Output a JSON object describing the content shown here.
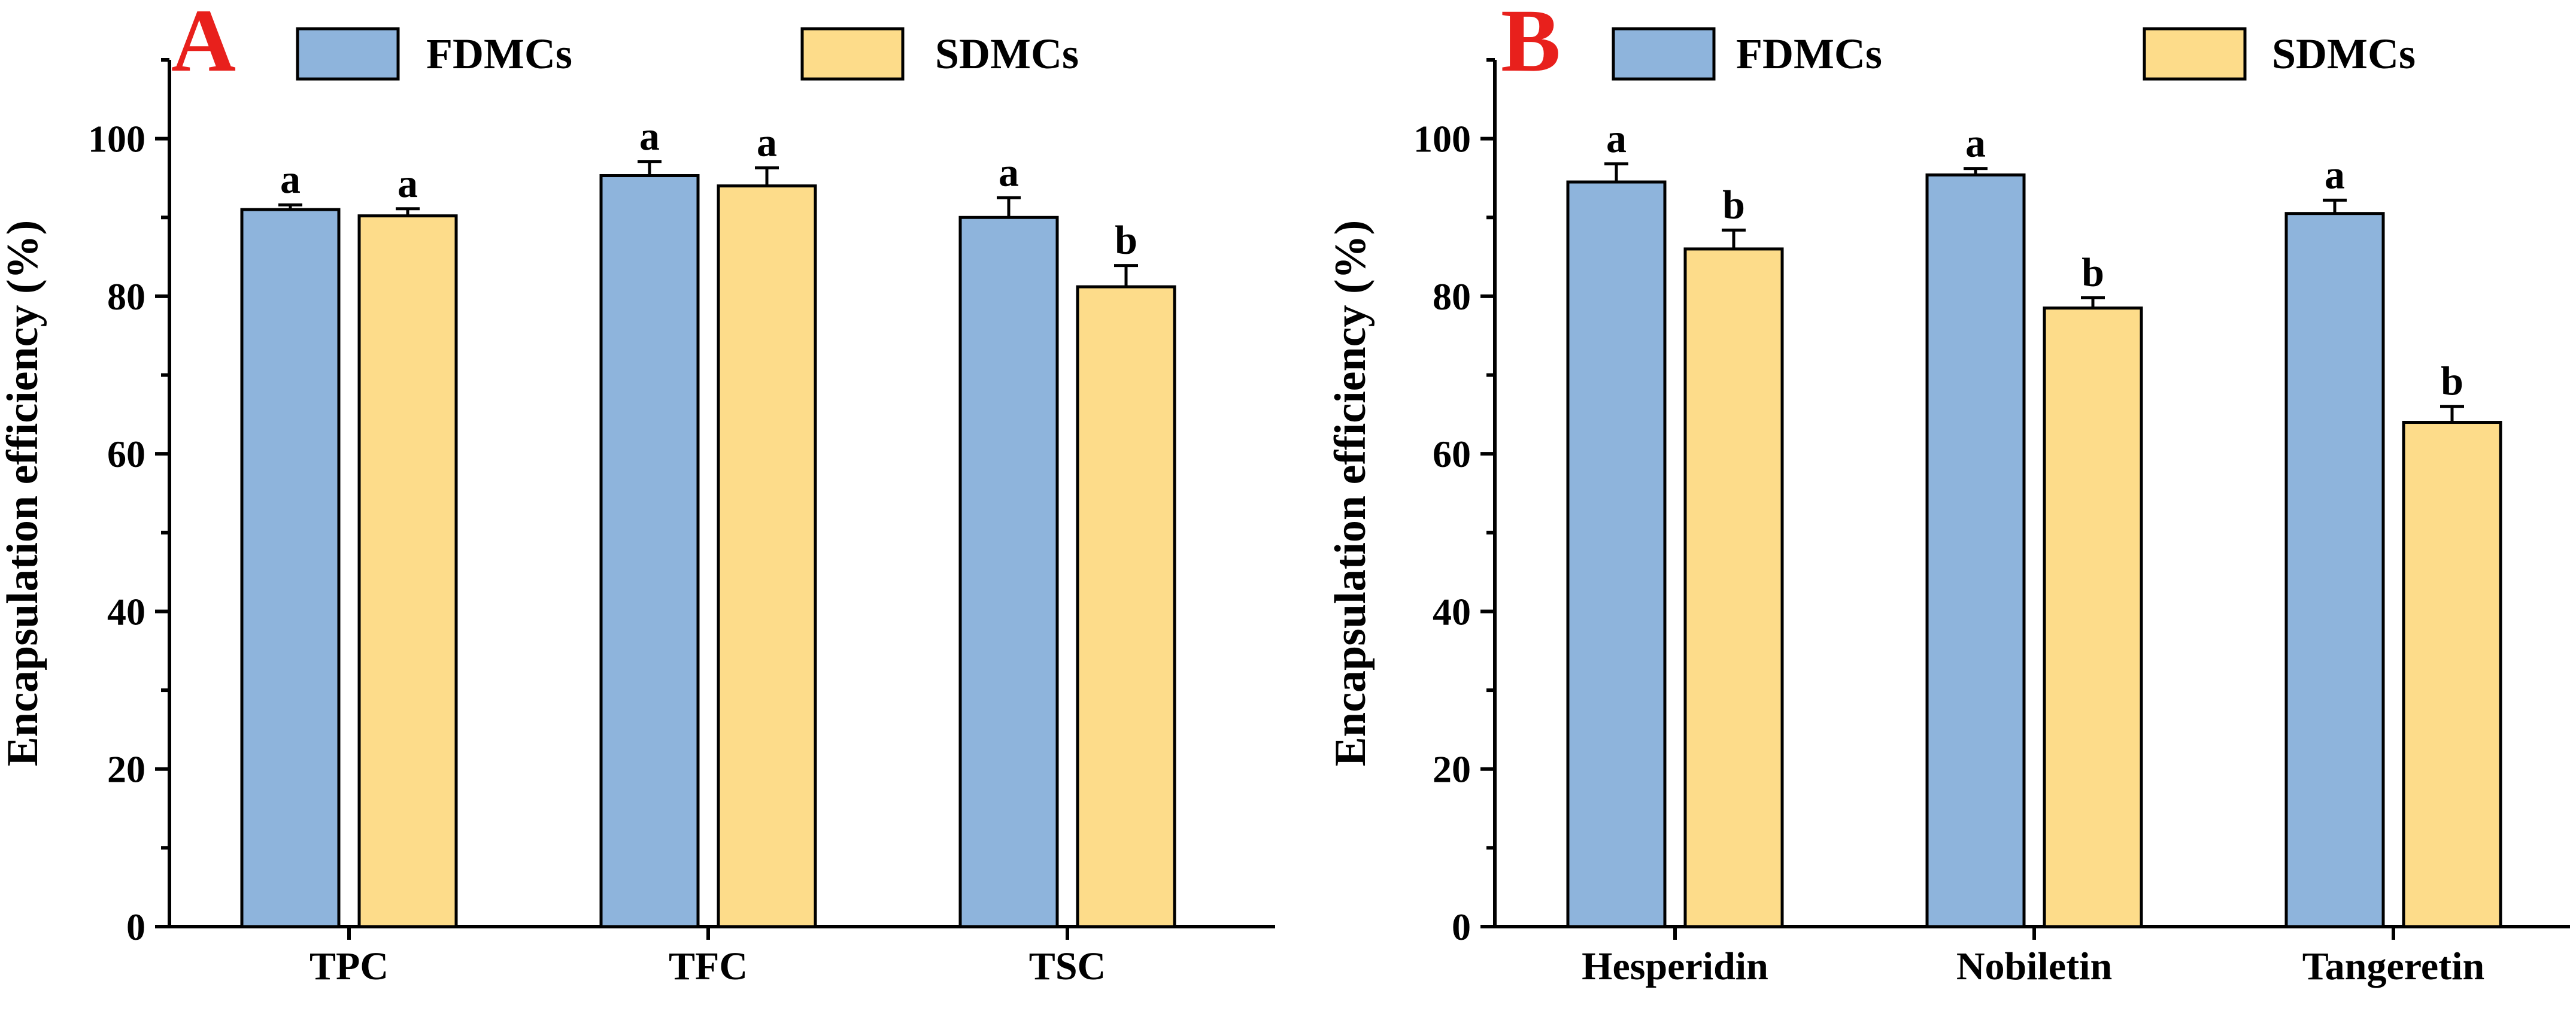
{
  "colors": {
    "fdmc": "#8EB4DC",
    "sdmc": "#FDDC8A",
    "panel_letter": "#E8201C",
    "axis": "#000000"
  },
  "chart_data": [
    {
      "type": "bar",
      "panel_label": "A",
      "ylabel": "Encapsulation efficiency (%)",
      "xlabel": "",
      "ylim": [
        0,
        110
      ],
      "yticks": [
        "0",
        "20",
        "40",
        "60",
        "80",
        "100"
      ],
      "categories": [
        "TPC",
        "TFC",
        "TSC"
      ],
      "series": [
        {
          "name": "FDMCs",
          "values": [
            91.0,
            95.3,
            90.0
          ],
          "errors": [
            0.6,
            1.8,
            2.5
          ],
          "letters": [
            "a",
            "a",
            "a"
          ]
        },
        {
          "name": "SDMCs",
          "values": [
            90.2,
            94.0,
            81.2
          ],
          "errors": [
            0.9,
            2.3,
            2.7
          ],
          "letters": [
            "a",
            "a",
            "b"
          ]
        }
      ],
      "legend": "top"
    },
    {
      "type": "bar",
      "panel_label": "B",
      "ylabel": "Encapsulation efficiency (%)",
      "xlabel": "",
      "ylim": [
        0,
        110
      ],
      "yticks": [
        "0",
        "20",
        "40",
        "60",
        "80",
        "100"
      ],
      "categories": [
        "Hesperidin",
        "Nobiletin",
        "Tangeretin"
      ],
      "series": [
        {
          "name": "FDMCs",
          "values": [
            94.5,
            95.4,
            90.5
          ],
          "errors": [
            2.3,
            0.8,
            1.7
          ],
          "letters": [
            "a",
            "a",
            "a"
          ]
        },
        {
          "name": "SDMCs",
          "values": [
            86.0,
            78.5,
            64.0
          ],
          "errors": [
            2.4,
            1.3,
            2.0
          ],
          "letters": [
            "b",
            "b",
            "b"
          ]
        }
      ],
      "legend": "top"
    }
  ]
}
